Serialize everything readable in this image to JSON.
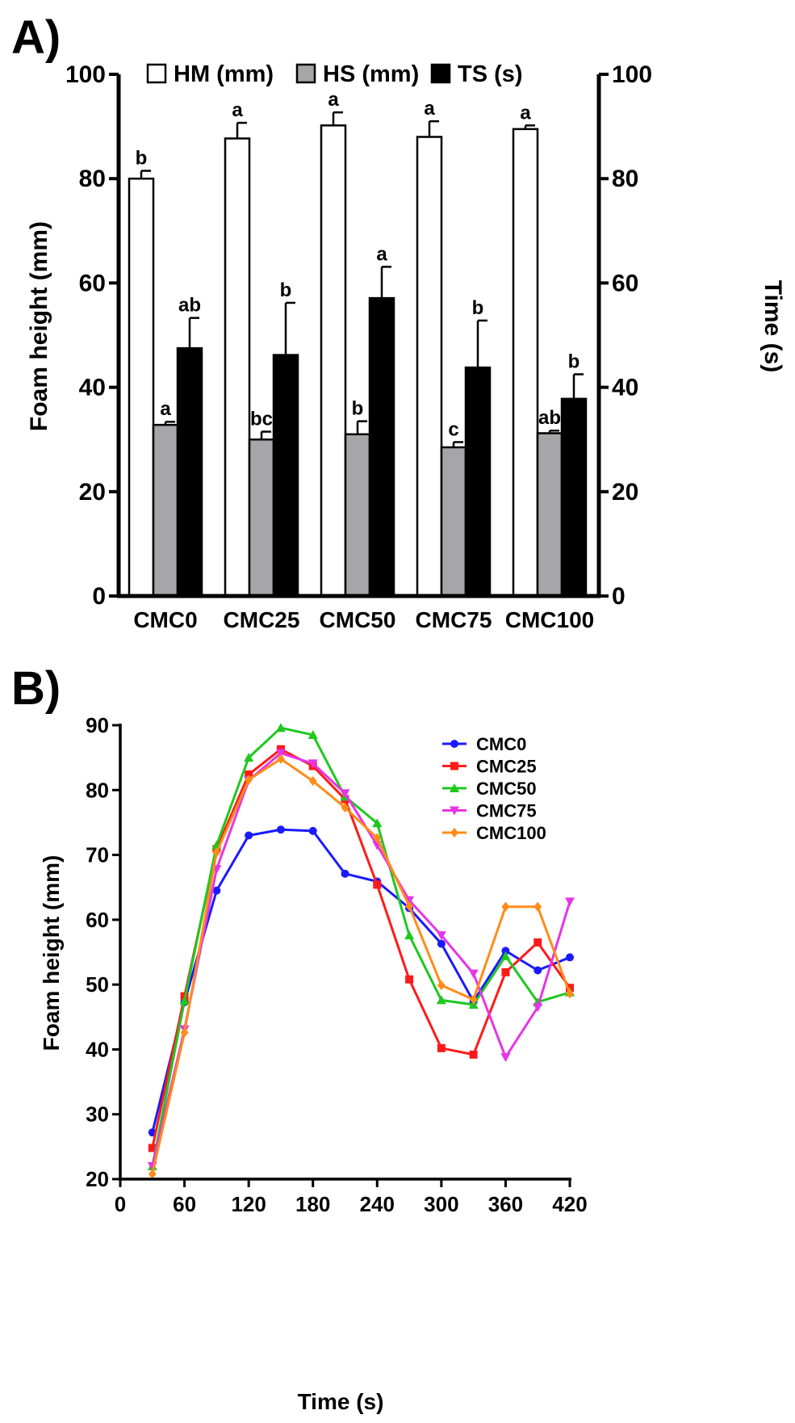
{
  "chart_data": [
    {
      "panel_label": "A)",
      "type": "bar",
      "categories": [
        "CMC0",
        "CMC25",
        "CMC50",
        "CMC75",
        "CMC100"
      ],
      "series": [
        {
          "name": "HM (mm)",
          "axis": "left",
          "color": "#ffffff",
          "values": [
            80.0,
            87.7,
            90.2,
            88.0,
            89.5
          ],
          "errors": [
            1.5,
            3.0,
            2.5,
            3.0,
            0.7
          ],
          "letters": [
            "b",
            "a",
            "a",
            "a",
            "a"
          ]
        },
        {
          "name": "HS (mm)",
          "axis": "left",
          "color": "#a6a6a8",
          "values": [
            32.8,
            30.0,
            31.0,
            28.5,
            31.2
          ],
          "errors": [
            0.6,
            1.5,
            2.5,
            1.0,
            0.5
          ],
          "letters": [
            "a",
            "bc",
            "b",
            "c",
            "ab"
          ]
        },
        {
          "name": "TS (s)",
          "axis": "right",
          "color": "#000000",
          "values": [
            47.5,
            46.2,
            57.1,
            43.8,
            37.8
          ],
          "errors": [
            5.8,
            10.0,
            6.0,
            9.0,
            4.7
          ],
          "letters": [
            "ab",
            "b",
            "a",
            "b",
            "b"
          ]
        }
      ],
      "ylabel": "Foam height (mm)",
      "y2label": "Time (s)",
      "ylim": [
        0,
        100
      ],
      "y2lim": [
        0,
        100
      ],
      "yticks": [
        "0",
        "20",
        "40",
        "60",
        "80",
        "100"
      ],
      "y2ticks": [
        "0",
        "20",
        "40",
        "60",
        "80",
        "100"
      ],
      "legend": "top"
    },
    {
      "panel_label": "B)",
      "type": "line",
      "x": [
        30,
        60,
        90,
        120,
        150,
        180,
        210,
        240,
        270,
        300,
        330,
        360,
        390,
        420
      ],
      "series": [
        {
          "name": "CMC0",
          "color": "#1a1aff",
          "marker": "circle",
          "values": [
            27.2,
            47.3,
            64.5,
            73.0,
            73.9,
            73.7,
            67.1,
            65.9,
            61.8,
            56.3,
            47.4,
            55.2,
            52.2,
            54.2
          ]
        },
        {
          "name": "CMC25",
          "color": "#ff1a1a",
          "marker": "square",
          "values": [
            24.8,
            48.2,
            70.9,
            82.4,
            86.3,
            83.7,
            78.6,
            65.4,
            50.8,
            40.2,
            39.2,
            51.9,
            56.5,
            49.5
          ]
        },
        {
          "name": "CMC50",
          "color": "#1ec81e",
          "marker": "triangle-up",
          "values": [
            22.0,
            47.5,
            71.5,
            85.0,
            89.6,
            88.5,
            79.0,
            74.9,
            57.6,
            47.6,
            46.9,
            54.4,
            47.3,
            48.8
          ]
        },
        {
          "name": "CMC75",
          "color": "#e635e6",
          "marker": "triangle-down",
          "values": [
            22.0,
            43.1,
            67.8,
            81.5,
            85.7,
            84.1,
            79.5,
            71.5,
            63.0,
            57.6,
            51.7,
            38.8,
            46.5,
            62.8
          ]
        },
        {
          "name": "CMC100",
          "color": "#ff8c1a",
          "marker": "diamond",
          "values": [
            20.8,
            42.6,
            70.4,
            81.6,
            84.8,
            81.4,
            77.3,
            72.6,
            62.1,
            49.9,
            47.7,
            62.0,
            62.0,
            48.6
          ]
        }
      ],
      "xlabel": "Time (s)",
      "ylabel": "Foam height (mm)",
      "xlim": [
        0,
        420
      ],
      "ylim": [
        20,
        90
      ],
      "xticks": [
        "0",
        "60",
        "120",
        "180",
        "240",
        "300",
        "360",
        "420"
      ],
      "yticks": [
        "20",
        "30",
        "40",
        "50",
        "60",
        "70",
        "80",
        "90"
      ],
      "legend": "top-right"
    }
  ]
}
